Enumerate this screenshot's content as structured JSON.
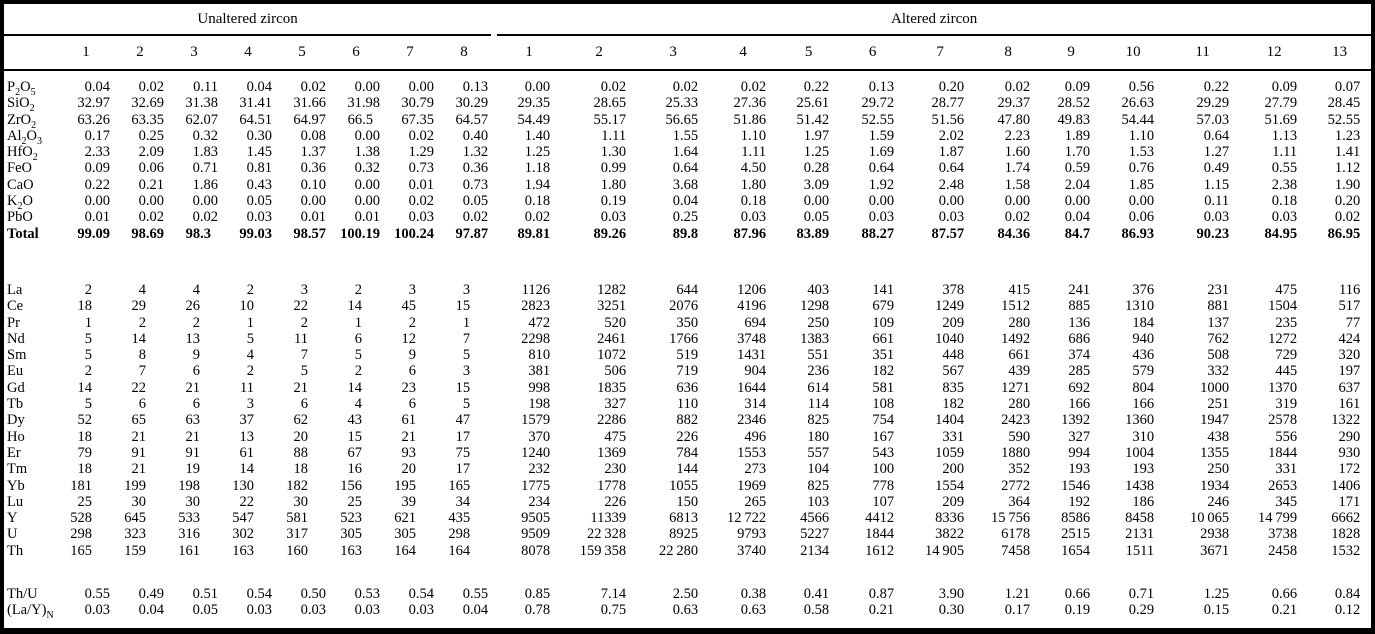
{
  "table": {
    "col_groups": [
      {
        "label": "Unaltered zircon",
        "columns": [
          "1",
          "2",
          "3",
          "4",
          "5",
          "6",
          "7",
          "8"
        ]
      },
      {
        "label": "Altered zircon",
        "columns": [
          "1",
          "2",
          "3",
          "4",
          "5",
          "6",
          "7",
          "8",
          "9",
          "10",
          "11",
          "12",
          "13"
        ]
      }
    ],
    "sections": [
      {
        "id": "major-oxides",
        "rows": [
          {
            "label": "P_2O_5",
            "values": [
              "0.04",
              "0.02",
              "0.11",
              "0.04",
              "0.02",
              "0.00",
              "0.00",
              "0.13",
              "0.00",
              "0.02",
              "0.02",
              "0.02",
              "0.22",
              "0.13",
              "0.20",
              "0.02",
              "0.09",
              "0.56",
              "0.22",
              "0.09",
              "0.07"
            ]
          },
          {
            "label": "SiO_2",
            "values": [
              "32.97",
              "32.69",
              "31.38",
              "31.41",
              "31.66",
              "31.98",
              "30.79",
              "30.29",
              "29.35",
              "28.65",
              "25.33",
              "27.36",
              "25.61",
              "29.72",
              "28.77",
              "29.37",
              "28.52",
              "26.63",
              "29.29",
              "27.79",
              "28.45"
            ]
          },
          {
            "label": "ZrO_2",
            "values": [
              "63.26",
              "63.35",
              "62.07",
              "64.51",
              "64.97",
              "66.5",
              "67.35",
              "64.57",
              "54.49",
              "55.17",
              "56.65",
              "51.86",
              "51.42",
              "52.55",
              "51.56",
              "47.80",
              "49.83",
              "54.44",
              "57.03",
              "51.69",
              "52.55"
            ]
          },
          {
            "label": "Al_2O_3",
            "values": [
              "0.17",
              "0.25",
              "0.32",
              "0.30",
              "0.08",
              "0.00",
              "0.02",
              "0.40",
              "1.40",
              "1.11",
              "1.55",
              "1.10",
              "1.97",
              "1.59",
              "2.02",
              "2.23",
              "1.89",
              "1.10",
              "0.64",
              "1.13",
              "1.23"
            ]
          },
          {
            "label": "HfO_2",
            "values": [
              "2.33",
              "2.09",
              "1.83",
              "1.45",
              "1.37",
              "1.38",
              "1.29",
              "1.32",
              "1.25",
              "1.30",
              "1.64",
              "1.11",
              "1.25",
              "1.69",
              "1.87",
              "1.60",
              "1.70",
              "1.53",
              "1.27",
              "1.11",
              "1.41"
            ]
          },
          {
            "label": "FeO",
            "values": [
              "0.09",
              "0.06",
              "0.71",
              "0.81",
              "0.36",
              "0.32",
              "0.73",
              "0.36",
              "1.18",
              "0.99",
              "0.64",
              "4.50",
              "0.28",
              "0.64",
              "0.64",
              "1.74",
              "0.59",
              "0.76",
              "0.49",
              "0.55",
              "1.12"
            ]
          },
          {
            "label": "CaO",
            "values": [
              "0.22",
              "0.21",
              "1.86",
              "0.43",
              "0.10",
              "0.00",
              "0.01",
              "0.73",
              "1.94",
              "1.80",
              "3.68",
              "1.80",
              "3.09",
              "1.92",
              "2.48",
              "1.58",
              "2.04",
              "1.85",
              "1.15",
              "2.38",
              "1.90"
            ]
          },
          {
            "label": "K_2O",
            "values": [
              "0.00",
              "0.00",
              "0.00",
              "0.05",
              "0.00",
              "0.00",
              "0.02",
              "0.05",
              "0.18",
              "0.19",
              "0.04",
              "0.18",
              "0.00",
              "0.00",
              "0.00",
              "0.00",
              "0.00",
              "0.00",
              "0.11",
              "0.18",
              "0.20"
            ]
          },
          {
            "label": "PbO",
            "values": [
              "0.01",
              "0.02",
              "0.02",
              "0.03",
              "0.01",
              "0.01",
              "0.03",
              "0.02",
              "0.02",
              "0.03",
              "0.25",
              "0.03",
              "0.05",
              "0.03",
              "0.03",
              "0.02",
              "0.04",
              "0.06",
              "0.03",
              "0.03",
              "0.02"
            ]
          },
          {
            "label": "Total",
            "bold": true,
            "values": [
              "99.09",
              "98.69",
              "98.3",
              "99.03",
              "98.57",
              "100.19",
              "100.24",
              "97.87",
              "89.81",
              "89.26",
              "89.8",
              "87.96",
              "83.89",
              "88.27",
              "87.57",
              "84.36",
              "84.7",
              "86.93",
              "90.23",
              "84.95",
              "86.95"
            ]
          }
        ]
      },
      {
        "id": "trace-elements",
        "rows": [
          {
            "label": "La",
            "values": [
              "2",
              "4",
              "4",
              "2",
              "3",
              "2",
              "3",
              "3",
              "1126",
              "1282",
              "644",
              "1206",
              "403",
              "141",
              "378",
              "415",
              "241",
              "376",
              "231",
              "475",
              "116"
            ]
          },
          {
            "label": "Ce",
            "values": [
              "18",
              "29",
              "26",
              "10",
              "22",
              "14",
              "45",
              "15",
              "2823",
              "3251",
              "2076",
              "4196",
              "1298",
              "679",
              "1249",
              "1512",
              "885",
              "1310",
              "881",
              "1504",
              "517"
            ]
          },
          {
            "label": "Pr",
            "values": [
              "1",
              "2",
              "2",
              "1",
              "2",
              "1",
              "2",
              "1",
              "472",
              "520",
              "350",
              "694",
              "250",
              "109",
              "209",
              "280",
              "136",
              "184",
              "137",
              "235",
              "77"
            ]
          },
          {
            "label": "Nd",
            "values": [
              "5",
              "14",
              "13",
              "5",
              "11",
              "6",
              "12",
              "7",
              "2298",
              "2461",
              "1766",
              "3748",
              "1383",
              "661",
              "1040",
              "1492",
              "686",
              "940",
              "762",
              "1272",
              "424"
            ]
          },
          {
            "label": "Sm",
            "values": [
              "5",
              "8",
              "9",
              "4",
              "7",
              "5",
              "9",
              "5",
              "810",
              "1072",
              "519",
              "1431",
              "551",
              "351",
              "448",
              "661",
              "374",
              "436",
              "508",
              "729",
              "320"
            ]
          },
          {
            "label": "Eu",
            "values": [
              "2",
              "7",
              "6",
              "2",
              "5",
              "2",
              "6",
              "3",
              "381",
              "506",
              "719",
              "904",
              "236",
              "182",
              "567",
              "439",
              "285",
              "579",
              "332",
              "445",
              "197"
            ]
          },
          {
            "label": "Gd",
            "values": [
              "14",
              "22",
              "21",
              "11",
              "21",
              "14",
              "23",
              "15",
              "998",
              "1835",
              "636",
              "1644",
              "614",
              "581",
              "835",
              "1271",
              "692",
              "804",
              "1000",
              "1370",
              "637"
            ]
          },
          {
            "label": "Tb",
            "values": [
              "5",
              "6",
              "6",
              "3",
              "6",
              "4",
              "6",
              "5",
              "198",
              "327",
              "110",
              "314",
              "114",
              "108",
              "182",
              "280",
              "166",
              "166",
              "251",
              "319",
              "161"
            ]
          },
          {
            "label": "Dy",
            "values": [
              "52",
              "65",
              "63",
              "37",
              "62",
              "43",
              "61",
              "47",
              "1579",
              "2286",
              "882",
              "2346",
              "825",
              "754",
              "1404",
              "2423",
              "1392",
              "1360",
              "1947",
              "2578",
              "1322"
            ]
          },
          {
            "label": "Ho",
            "values": [
              "18",
              "21",
              "21",
              "13",
              "20",
              "15",
              "21",
              "17",
              "370",
              "475",
              "226",
              "496",
              "180",
              "167",
              "331",
              "590",
              "327",
              "310",
              "438",
              "556",
              "290"
            ]
          },
          {
            "label": "Er",
            "values": [
              "79",
              "91",
              "91",
              "61",
              "88",
              "67",
              "93",
              "75",
              "1240",
              "1369",
              "784",
              "1553",
              "557",
              "543",
              "1059",
              "1880",
              "994",
              "1004",
              "1355",
              "1844",
              "930"
            ]
          },
          {
            "label": "Tm",
            "values": [
              "18",
              "21",
              "19",
              "14",
              "18",
              "16",
              "20",
              "17",
              "232",
              "230",
              "144",
              "273",
              "104",
              "100",
              "200",
              "352",
              "193",
              "193",
              "250",
              "331",
              "172"
            ]
          },
          {
            "label": "Yb",
            "values": [
              "181",
              "199",
              "198",
              "130",
              "182",
              "156",
              "195",
              "165",
              "1775",
              "1778",
              "1055",
              "1969",
              "825",
              "778",
              "1554",
              "2772",
              "1546",
              "1438",
              "1934",
              "2653",
              "1406"
            ]
          },
          {
            "label": "Lu",
            "values": [
              "25",
              "30",
              "30",
              "22",
              "30",
              "25",
              "39",
              "34",
              "234",
              "226",
              "150",
              "265",
              "103",
              "107",
              "209",
              "364",
              "192",
              "186",
              "246",
              "345",
              "171"
            ]
          },
          {
            "label": "Y",
            "values": [
              "528",
              "645",
              "533",
              "547",
              "581",
              "523",
              "621",
              "435",
              "9505",
              "11339",
              "6813",
              "12 722",
              "4566",
              "4412",
              "8336",
              "15 756",
              "8586",
              "8458",
              "10 065",
              "14 799",
              "6662"
            ]
          },
          {
            "label": "U",
            "values": [
              "298",
              "323",
              "316",
              "302",
              "317",
              "305",
              "305",
              "298",
              "9509",
              "22 328",
              "8925",
              "9793",
              "5227",
              "1844",
              "3822",
              "6178",
              "2515",
              "2131",
              "2938",
              "3738",
              "1828"
            ]
          },
          {
            "label": "Th",
            "values": [
              "165",
              "159",
              "161",
              "163",
              "160",
              "163",
              "164",
              "164",
              "8078",
              "159 358",
              "22 280",
              "3740",
              "2134",
              "1612",
              "14 905",
              "7458",
              "1654",
              "1511",
              "3671",
              "2458",
              "1532"
            ]
          }
        ]
      },
      {
        "id": "ratios",
        "rows": [
          {
            "label": "Th/U",
            "values": [
              "0.55",
              "0.49",
              "0.51",
              "0.54",
              "0.50",
              "0.53",
              "0.54",
              "0.55",
              "0.85",
              "7.14",
              "2.50",
              "0.38",
              "0.41",
              "0.87",
              "3.90",
              "1.21",
              "0.66",
              "0.71",
              "1.25",
              "0.66",
              "0.84"
            ]
          },
          {
            "label": "(La/Y)_N",
            "values": [
              "0.03",
              "0.04",
              "0.05",
              "0.03",
              "0.03",
              "0.03",
              "0.03",
              "0.04",
              "0.78",
              "0.75",
              "0.63",
              "0.63",
              "0.58",
              "0.21",
              "0.30",
              "0.17",
              "0.19",
              "0.29",
              "0.15",
              "0.21",
              "0.12"
            ]
          }
        ]
      }
    ]
  }
}
